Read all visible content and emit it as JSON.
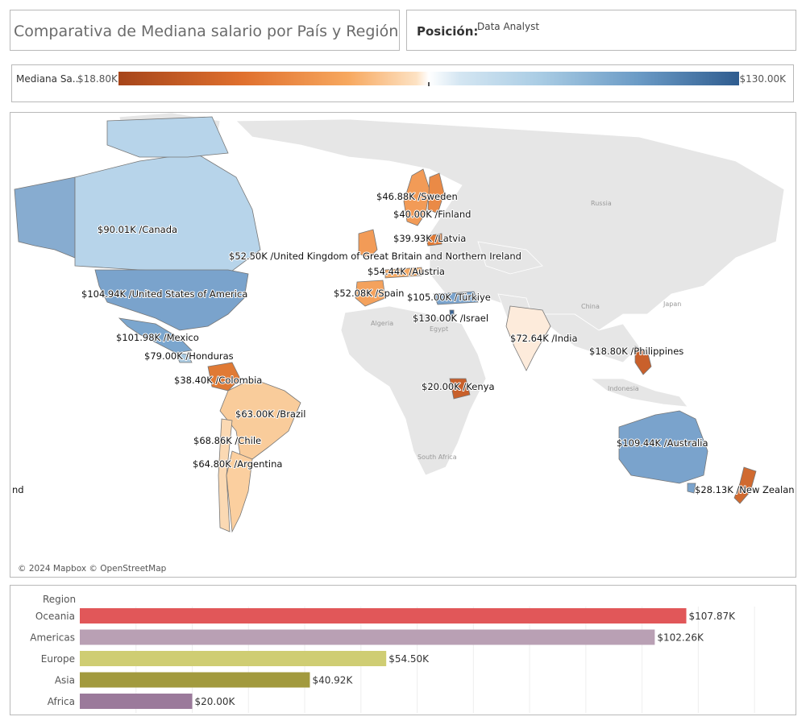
{
  "header": {
    "title": "Comparativa de Mediana salario por País y Región",
    "position_label": "Posición:",
    "position_value": "Data Analyst"
  },
  "legend": {
    "label": "Mediana Sa..",
    "min": "$18.80K",
    "max": "$130.00K",
    "color_low": "#a6451a",
    "color_mid": "#ffffff",
    "color_high": "#2f5c8f"
  },
  "map": {
    "attribution": "© 2024 Mapbox © OpenStreetMap",
    "base_labels": [
      "Russia",
      "China",
      "Japan",
      "Algeria",
      "Egypt",
      "Indonesia",
      "South Africa"
    ],
    "countries": [
      {
        "id": "sweden",
        "label": "$46.88K /Sweden",
        "value": 46.88
      },
      {
        "id": "finland",
        "label": "$40.00K /Finland",
        "value": 40.0
      },
      {
        "id": "canada",
        "label": "$90.01K /Canada",
        "value": 90.01
      },
      {
        "id": "latvia",
        "label": "$39.93K /Latvia",
        "value": 39.93
      },
      {
        "id": "uk",
        "label": "$52.50K /United Kingdom of Great Britain and Northern Ireland",
        "value": 52.5
      },
      {
        "id": "austria",
        "label": "$54.44K /Austria",
        "value": 54.44
      },
      {
        "id": "usa",
        "label": "$104.94K /United States of America",
        "value": 104.94
      },
      {
        "id": "spain",
        "label": "$52.08K /Spain",
        "value": 52.08
      },
      {
        "id": "turkiye",
        "label": "$105.00K /Türkiye",
        "value": 105.0
      },
      {
        "id": "israel",
        "label": "$130.00K /Israel",
        "value": 130.0
      },
      {
        "id": "mexico",
        "label": "$101.98K /Mexico",
        "value": 101.98
      },
      {
        "id": "india",
        "label": "$72.64K /India",
        "value": 72.64
      },
      {
        "id": "honduras",
        "label": "$79.00K /Honduras",
        "value": 79.0
      },
      {
        "id": "philippines",
        "label": "$18.80K /Philippines",
        "value": 18.8
      },
      {
        "id": "colombia",
        "label": "$38.40K /Colombia",
        "value": 38.4
      },
      {
        "id": "kenya",
        "label": "$20.00K /Kenya",
        "value": 20.0
      },
      {
        "id": "brazil",
        "label": "$63.00K /Brazil",
        "value": 63.0
      },
      {
        "id": "chile",
        "label": "$68.86K /Chile",
        "value": 68.86
      },
      {
        "id": "australia",
        "label": "$109.44K /Australia",
        "value": 109.44
      },
      {
        "id": "argentina",
        "label": "$64.80K /Argentina",
        "value": 64.8
      },
      {
        "id": "newzealand",
        "label": "$28.13K /New Zealan",
        "value": 28.13
      },
      {
        "id": "edge",
        "label": "nd",
        "value": null
      }
    ]
  },
  "chart_data": {
    "type": "bar",
    "orientation": "horizontal",
    "header": "Region",
    "categories": [
      "Oceania",
      "Americas",
      "Europe",
      "Asia",
      "Africa"
    ],
    "values": [
      107.87,
      102.26,
      54.5,
      40.92,
      20.0
    ],
    "value_labels": [
      "$107.87K",
      "$102.26K",
      "$54.50K",
      "$40.92K",
      "$20.00K"
    ],
    "colors": [
      "#e15759",
      "#b9a0b4",
      "#cfcd73",
      "#a29a3e",
      "#9b7a9b"
    ],
    "xlim": [
      0,
      125
    ],
    "grid": true
  }
}
